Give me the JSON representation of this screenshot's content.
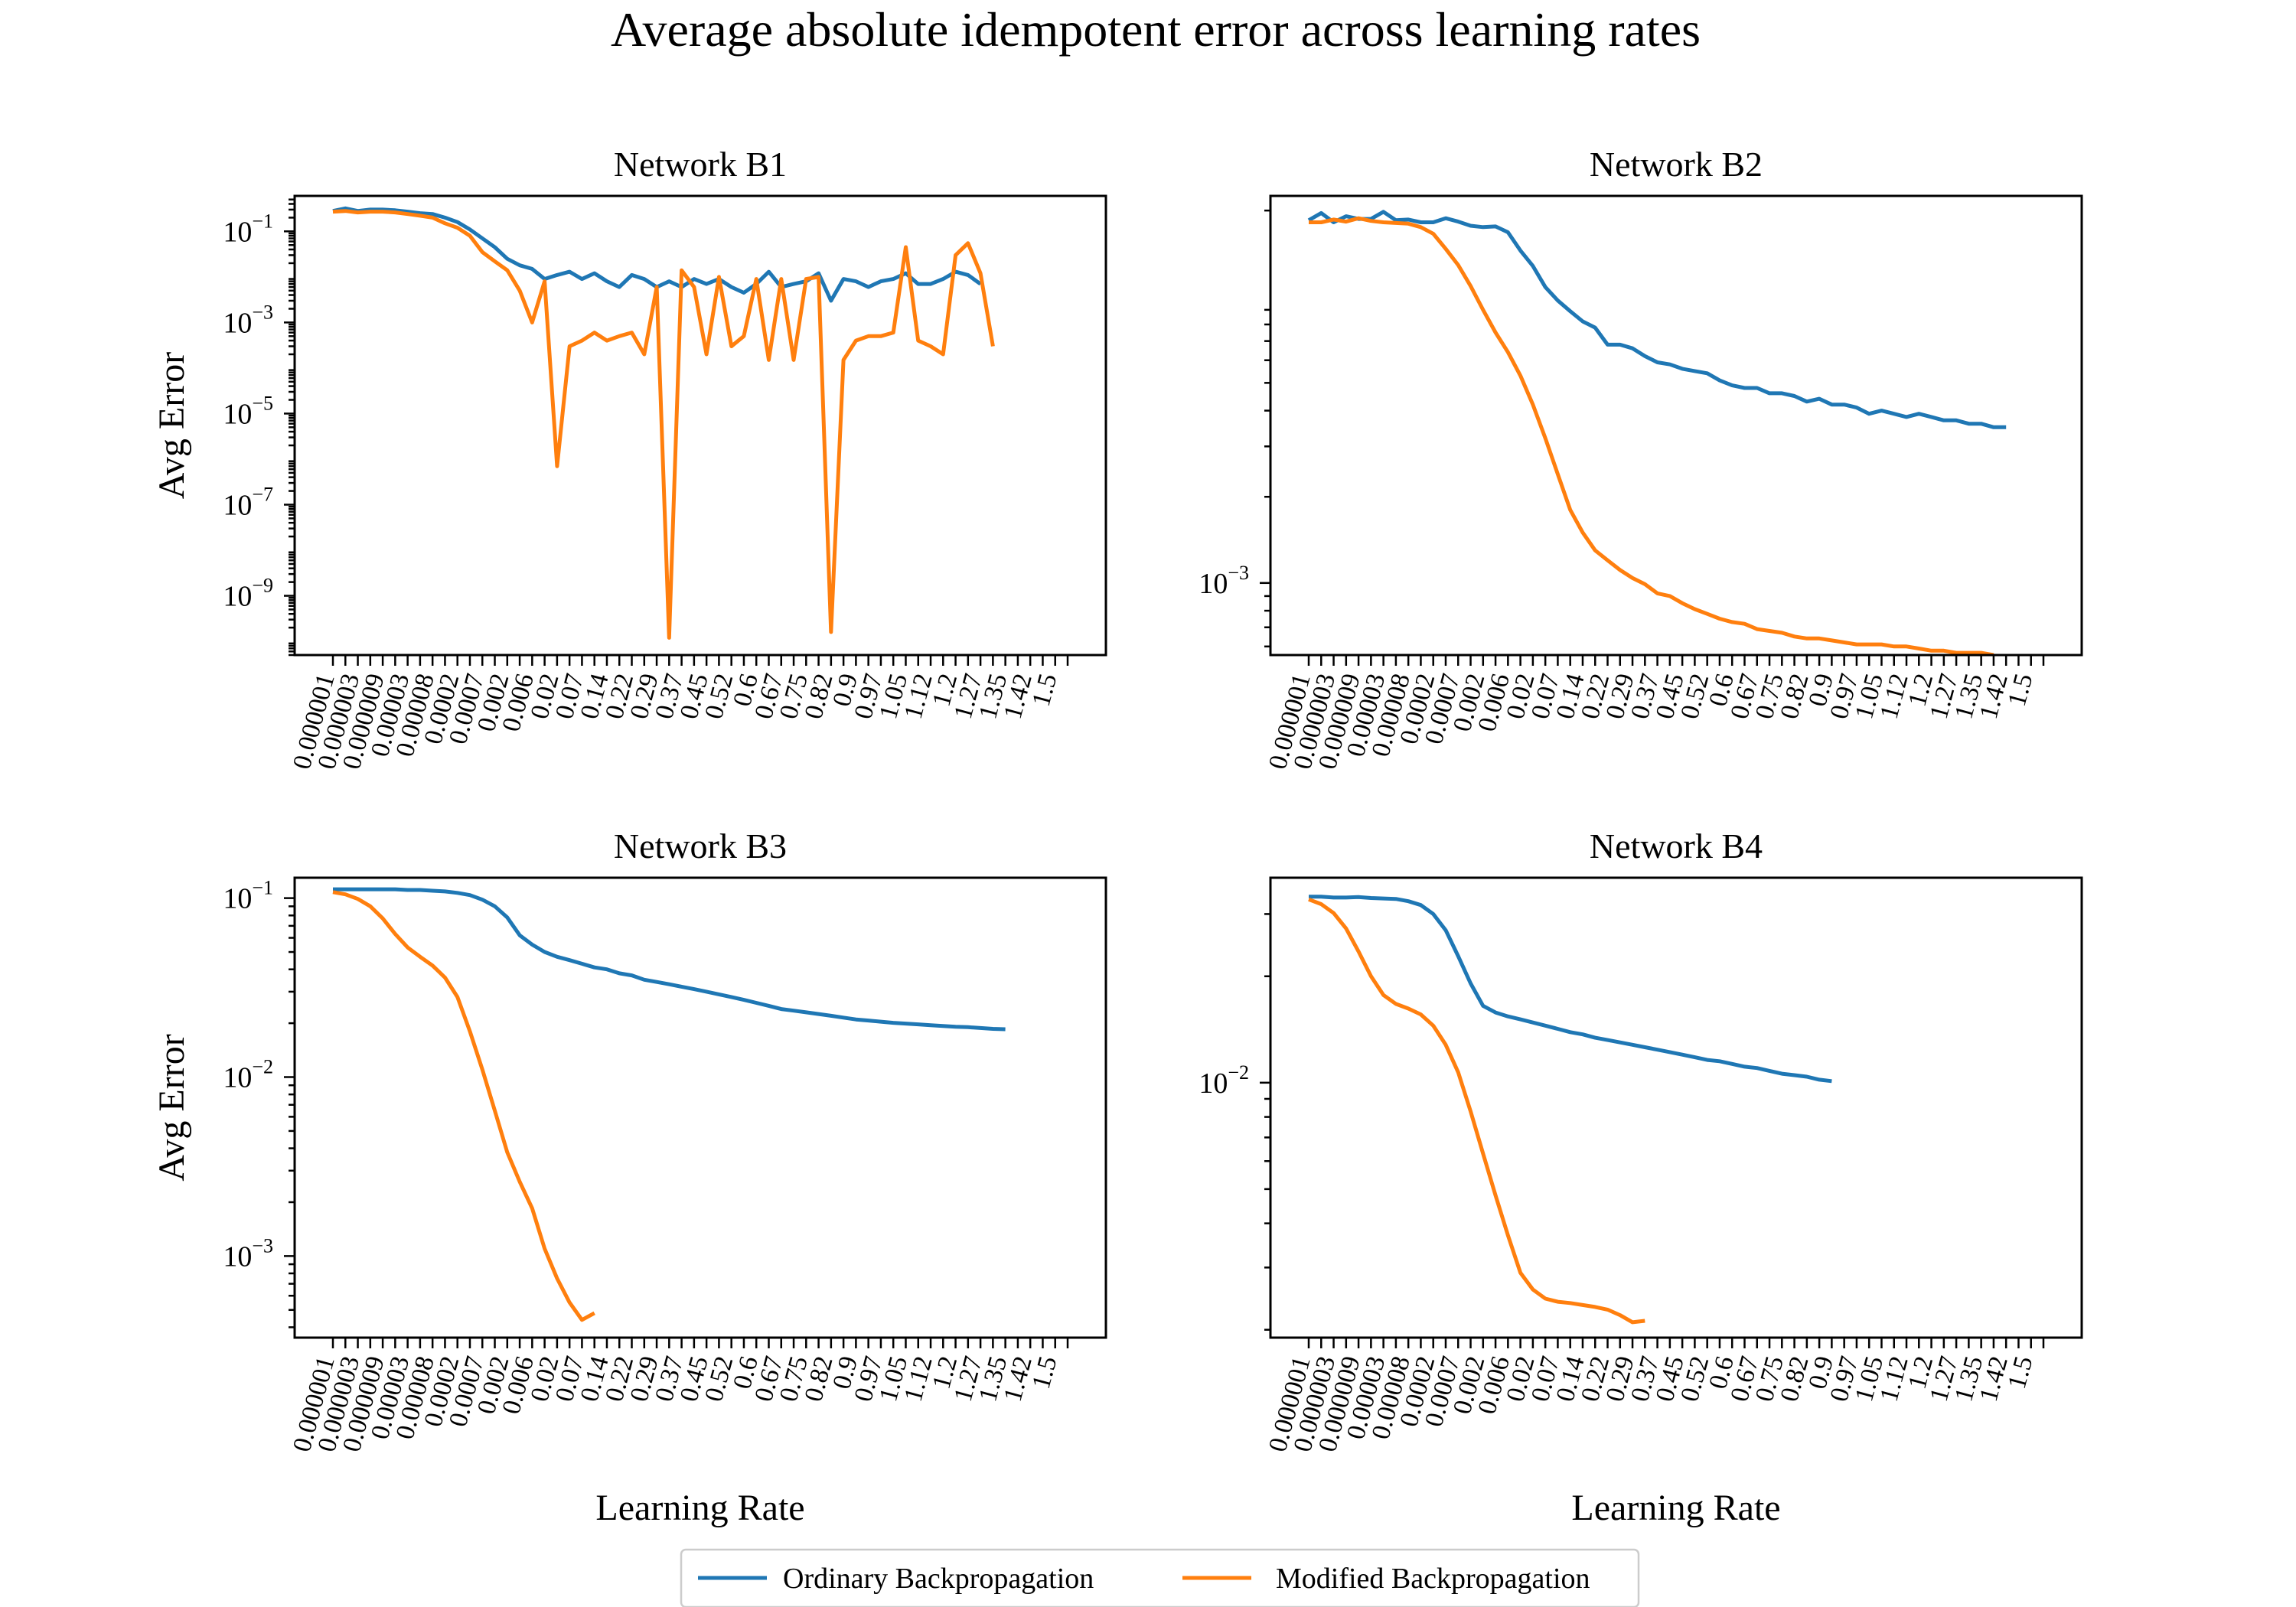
{
  "title": "Average absolute idempotent error across learning rates",
  "legend": [
    {
      "label": "Ordinary Backpropagation",
      "color": "#1f77b4"
    },
    {
      "label": "Modified Backpropagation",
      "color": "#ff7f0e"
    }
  ],
  "chart_data": [
    {
      "type": "line",
      "title": "Network B1",
      "xlabel": "",
      "ylabel": "Avg Error",
      "yscale": "log",
      "ylim": [
        5e-11,
        0.6
      ],
      "yticks": [
        {
          "label": "10",
          "exp": "−1"
        },
        {
          "label": "10",
          "exp": "−3"
        },
        {
          "label": "10",
          "exp": "−5"
        },
        {
          "label": "10",
          "exp": "−7"
        },
        {
          "label": "10",
          "exp": "−9"
        }
      ],
      "x_tick_labels": [
        "0.000001",
        "0.000003",
        "0.000009",
        "0.00003",
        "0.00008",
        "0.0002",
        "0.0007",
        "0.002",
        "0.006",
        "0.02",
        "0.07",
        "0.14",
        "0.22",
        "0.29",
        "0.37",
        "0.45",
        "0.52",
        "0.6",
        "0.67",
        "0.75",
        "0.82",
        "0.9",
        "0.97",
        "1.05",
        "1.12",
        "1.2",
        "1.27",
        "1.35",
        "1.42",
        "1.5"
      ],
      "x_index_range": [
        0,
        59
      ],
      "series": [
        {
          "name": "Ordinary Backpropagation",
          "color": "#1f77b4",
          "values": [
            0.28,
            0.32,
            0.28,
            0.3,
            0.3,
            0.29,
            0.27,
            0.25,
            0.24,
            0.2,
            0.16,
            0.11,
            0.07,
            0.045,
            0.025,
            0.018,
            0.015,
            0.009,
            0.011,
            0.013,
            0.009,
            0.012,
            0.008,
            0.006,
            0.011,
            0.009,
            0.006,
            0.008,
            0.006,
            0.009,
            0.007,
            0.009,
            0.006,
            0.0045,
            0.007,
            0.013,
            0.006,
            0.007,
            0.008,
            0.012,
            0.003,
            0.009,
            0.008,
            0.006,
            0.008,
            0.009,
            0.012,
            0.007,
            0.007,
            0.009,
            0.013,
            0.011,
            0.007
          ]
        },
        {
          "name": "Modified Backpropagation",
          "color": "#ff7f0e",
          "values": [
            0.27,
            0.28,
            0.26,
            0.27,
            0.27,
            0.26,
            0.24,
            0.22,
            0.2,
            0.15,
            0.12,
            0.08,
            0.035,
            0.022,
            0.014,
            0.005,
            0.001,
            0.008,
            7e-07,
            0.0003,
            0.0004,
            0.0006,
            0.0004,
            0.0005,
            0.0006,
            0.0002,
            0.006,
            1.2e-10,
            0.014,
            0.006,
            0.0002,
            0.01,
            0.0003,
            0.0005,
            0.009,
            0.00015,
            0.009,
            0.00015,
            0.009,
            0.01,
            1.6e-10,
            0.00015,
            0.0004,
            0.0005,
            0.0005,
            0.0006,
            0.045,
            0.0004,
            0.0003,
            0.0002,
            0.03,
            0.055,
            0.012,
            0.0003
          ]
        }
      ]
    },
    {
      "type": "line",
      "title": "Network B2",
      "xlabel": "",
      "ylabel": "",
      "yscale": "log",
      "ylim": [
        0.00056,
        0.0225
      ],
      "yticks": [
        {
          "label": "10",
          "exp": "−3"
        }
      ],
      "x_tick_labels": [
        "0.000001",
        "0.000003",
        "0.000009",
        "0.00003",
        "0.00008",
        "0.0002",
        "0.0007",
        "0.002",
        "0.006",
        "0.02",
        "0.07",
        "0.14",
        "0.22",
        "0.29",
        "0.37",
        "0.45",
        "0.52",
        "0.6",
        "0.67",
        "0.75",
        "0.82",
        "0.9",
        "0.97",
        "1.05",
        "1.12",
        "1.2",
        "1.27",
        "1.35",
        "1.42",
        "1.5"
      ],
      "x_index_range": [
        0,
        59
      ],
      "series": [
        {
          "name": "Ordinary Backpropagation",
          "color": "#1f77b4",
          "values": [
            0.0185,
            0.0196,
            0.0182,
            0.0191,
            0.0187,
            0.0187,
            0.0198,
            0.0185,
            0.0186,
            0.0182,
            0.0182,
            0.0188,
            0.0183,
            0.0177,
            0.0175,
            0.0176,
            0.0168,
            0.0145,
            0.0128,
            0.0108,
            0.0097,
            0.0089,
            0.0082,
            0.0078,
            0.0068,
            0.0068,
            0.0066,
            0.0062,
            0.0059,
            0.0058,
            0.0056,
            0.0055,
            0.0054,
            0.0051,
            0.0049,
            0.0048,
            0.0048,
            0.0046,
            0.0046,
            0.0045,
            0.0043,
            0.0044,
            0.0042,
            0.0042,
            0.0041,
            0.0039,
            0.004,
            0.0039,
            0.0038,
            0.0039,
            0.0038,
            0.0037,
            0.0037,
            0.0036,
            0.0036,
            0.0035,
            0.0035
          ]
        },
        {
          "name": "Modified Backpropagation",
          "color": "#ff7f0e",
          "values": [
            0.0182,
            0.0182,
            0.0186,
            0.0183,
            0.0188,
            0.0184,
            0.0182,
            0.0181,
            0.018,
            0.0175,
            0.0166,
            0.0147,
            0.0129,
            0.0109,
            0.009,
            0.0075,
            0.0064,
            0.0053,
            0.0042,
            0.0032,
            0.0024,
            0.0018,
            0.0015,
            0.0013,
            0.0012,
            0.00111,
            0.00104,
            0.00099,
            0.00092,
            0.0009,
            0.00085,
            0.00081,
            0.00078,
            0.00075,
            0.00073,
            0.00072,
            0.00069,
            0.00068,
            0.00067,
            0.00065,
            0.00064,
            0.00064,
            0.00063,
            0.00062,
            0.00061,
            0.00061,
            0.00061,
            0.0006,
            0.0006,
            0.00059,
            0.00058,
            0.00058,
            0.00057,
            0.00057,
            0.00057,
            0.00056
          ]
        }
      ]
    },
    {
      "type": "line",
      "title": "Network B3",
      "xlabel": "Learning Rate",
      "ylabel": "Avg Error",
      "yscale": "log",
      "ylim": [
        0.00035,
        0.13
      ],
      "yticks": [
        {
          "label": "10",
          "exp": "−1"
        },
        {
          "label": "10",
          "exp": "−2"
        },
        {
          "label": "10",
          "exp": "−3"
        }
      ],
      "x_tick_labels": [
        "0.000001",
        "0.000003",
        "0.000009",
        "0.00003",
        "0.00008",
        "0.0002",
        "0.0007",
        "0.002",
        "0.006",
        "0.02",
        "0.07",
        "0.14",
        "0.22",
        "0.29",
        "0.37",
        "0.45",
        "0.52",
        "0.6",
        "0.67",
        "0.75",
        "0.82",
        "0.9",
        "0.97",
        "1.05",
        "1.12",
        "1.2",
        "1.27",
        "1.35",
        "1.42",
        "1.5"
      ],
      "x_index_range": [
        0,
        59
      ],
      "series": [
        {
          "name": "Ordinary Backpropagation",
          "color": "#1f77b4",
          "values": [
            0.112,
            0.112,
            0.112,
            0.112,
            0.112,
            0.112,
            0.111,
            0.111,
            0.11,
            0.109,
            0.107,
            0.104,
            0.098,
            0.09,
            0.078,
            0.062,
            0.055,
            0.05,
            0.047,
            0.045,
            0.043,
            0.041,
            0.04,
            0.038,
            0.037,
            0.035,
            0.034,
            0.033,
            0.032,
            0.031,
            0.03,
            0.029,
            0.028,
            0.027,
            0.026,
            0.025,
            0.024,
            0.0235,
            0.023,
            0.0225,
            0.022,
            0.0215,
            0.021,
            0.0207,
            0.0204,
            0.0201,
            0.0199,
            0.0197,
            0.0195,
            0.0193,
            0.0191,
            0.019,
            0.0188,
            0.0186,
            0.0185
          ]
        },
        {
          "name": "Modified Backpropagation",
          "color": "#ff7f0e",
          "values": [
            0.108,
            0.105,
            0.099,
            0.09,
            0.077,
            0.063,
            0.053,
            0.047,
            0.042,
            0.036,
            0.028,
            0.018,
            0.011,
            0.0065,
            0.0038,
            0.0026,
            0.00185,
            0.0011,
            0.00075,
            0.00055,
            0.00044,
            0.00048
          ]
        }
      ]
    },
    {
      "type": "line",
      "title": "Network B4",
      "xlabel": "Learning Rate",
      "ylabel": "",
      "yscale": "log",
      "ylim": [
        0.0019,
        0.038
      ],
      "yticks": [
        {
          "label": "10",
          "exp": "−2"
        }
      ],
      "x_tick_labels": [
        "0.000001",
        "0.000003",
        "0.000009",
        "0.00003",
        "0.00008",
        "0.0002",
        "0.0007",
        "0.002",
        "0.006",
        "0.02",
        "0.07",
        "0.14",
        "0.22",
        "0.29",
        "0.37",
        "0.45",
        "0.52",
        "0.6",
        "0.67",
        "0.75",
        "0.82",
        "0.9",
        "0.97",
        "1.05",
        "1.12",
        "1.2",
        "1.27",
        "1.35",
        "1.42",
        "1.5"
      ],
      "x_index_range": [
        0,
        59
      ],
      "series": [
        {
          "name": "Ordinary Backpropagation",
          "color": "#1f77b4",
          "values": [
            0.0336,
            0.0336,
            0.0334,
            0.0334,
            0.0335,
            0.0333,
            0.0332,
            0.0331,
            0.0326,
            0.0318,
            0.03,
            0.027,
            0.0228,
            0.0191,
            0.0165,
            0.0158,
            0.0154,
            0.0151,
            0.0148,
            0.0145,
            0.0142,
            0.0139,
            0.0137,
            0.0134,
            0.0132,
            0.013,
            0.0128,
            0.0126,
            0.0124,
            0.0122,
            0.012,
            0.0118,
            0.0116,
            0.0115,
            0.0113,
            0.0111,
            0.011,
            0.0108,
            0.0106,
            0.0105,
            0.0104,
            0.0102,
            0.0101
          ]
        },
        {
          "name": "Modified Backpropagation",
          "color": "#ff7f0e",
          "values": [
            0.033,
            0.032,
            0.0302,
            0.0273,
            0.0235,
            0.02,
            0.0177,
            0.0167,
            0.0162,
            0.0156,
            0.0145,
            0.0128,
            0.0107,
            0.0083,
            0.0063,
            0.0048,
            0.0037,
            0.0029,
            0.0026,
            0.00245,
            0.0024,
            0.00238,
            0.00235,
            0.00232,
            0.00228,
            0.0022,
            0.0021,
            0.00212
          ]
        }
      ]
    }
  ]
}
